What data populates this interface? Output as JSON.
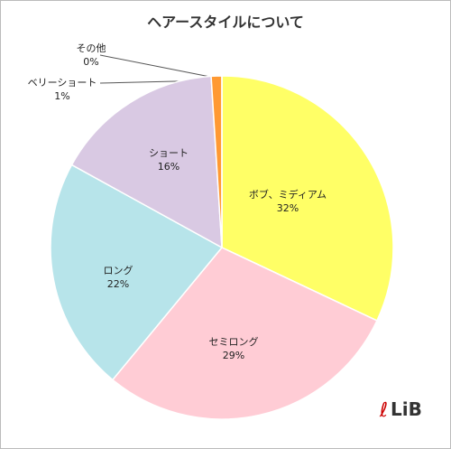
{
  "chart_data": {
    "type": "pie",
    "title": "ヘアースタイルについて",
    "categories": [
      "ボブ、ミディアム",
      "セミロング",
      "ロング",
      "ショート",
      "ベリーショート",
      "その他"
    ],
    "values": [
      32,
      29,
      22,
      16,
      1,
      0
    ],
    "value_labels": [
      "32%",
      "29%",
      "22%",
      "16%",
      "1%",
      "0%"
    ],
    "colors": [
      "#ffff66",
      "#ffccd5",
      "#b7e4ea",
      "#d9c9e3",
      "#ff9933",
      "#9bbb59"
    ]
  },
  "logo": "LiB"
}
